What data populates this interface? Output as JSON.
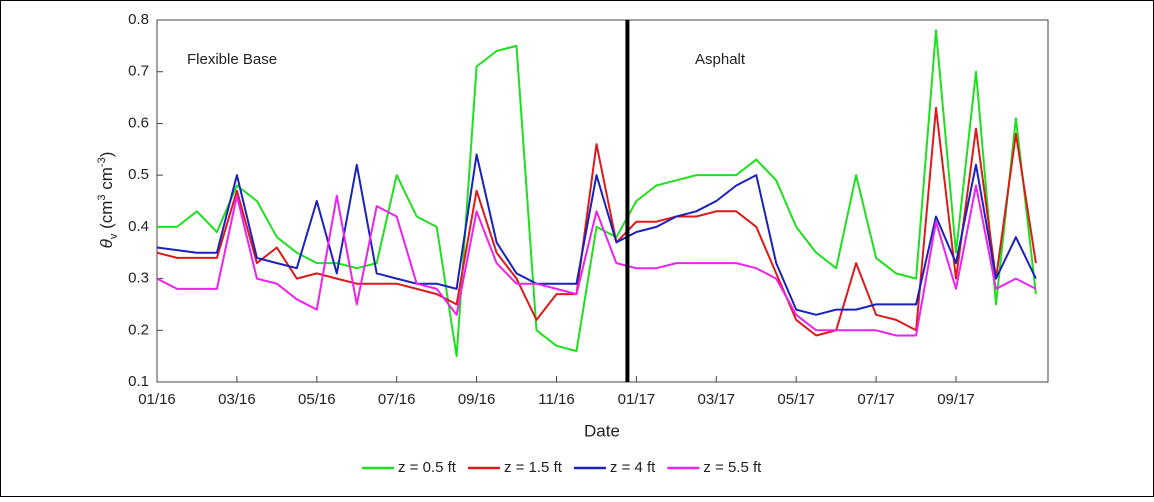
{
  "chart_data": {
    "type": "line",
    "x_label": "Date",
    "y_label": [
      "θ",
      "v",
      " (cm",
      "3",
      " cm",
      "-3",
      ")"
    ],
    "annotations": [
      "Flexible Base",
      "Asphalt"
    ],
    "categories": [
      "01/16",
      null,
      null,
      null,
      "03/16",
      null,
      null,
      null,
      "05/16",
      null,
      null,
      null,
      "07/16",
      null,
      null,
      null,
      "09/16",
      null,
      null,
      null,
      "11/16",
      null,
      null,
      null,
      "01/17",
      null,
      null,
      null,
      "03/17",
      null,
      null,
      null,
      "05/17",
      null,
      null,
      null,
      "07/17",
      null,
      null,
      null,
      "09/17",
      null,
      null,
      null,
      null
    ],
    "series": [
      {
        "name": "z = 0.5 ft",
        "color": "#1ee01e",
        "values": [
          0.4,
          0.4,
          0.43,
          0.39,
          0.48,
          0.45,
          0.38,
          0.35,
          0.33,
          0.33,
          0.32,
          0.33,
          0.5,
          0.42,
          0.4,
          0.15,
          0.71,
          0.74,
          0.75,
          0.2,
          0.17,
          0.16,
          0.4,
          0.38,
          0.45,
          0.48,
          0.49,
          0.5,
          0.5,
          0.5,
          0.53,
          0.49,
          0.4,
          0.35,
          0.32,
          0.5,
          0.34,
          0.31,
          0.3,
          0.78,
          0.35,
          0.7,
          0.25,
          0.61,
          0.27
        ]
      },
      {
        "name": "z = 1.5 ft",
        "color": "#dd1a1a",
        "values": [
          0.35,
          0.34,
          0.34,
          0.34,
          0.47,
          0.33,
          0.36,
          0.3,
          0.31,
          0.3,
          0.29,
          0.29,
          0.29,
          0.28,
          0.27,
          0.25,
          0.47,
          0.35,
          0.3,
          0.22,
          0.27,
          0.27,
          0.56,
          0.37,
          0.41,
          0.41,
          0.42,
          0.42,
          0.43,
          0.43,
          0.4,
          0.31,
          0.22,
          0.19,
          0.2,
          0.33,
          0.23,
          0.22,
          0.2,
          0.63,
          0.3,
          0.59,
          0.3,
          0.58,
          0.33
        ]
      },
      {
        "name": "z = 4 ft",
        "color": "#1a22bb",
        "values": [
          0.36,
          0.355,
          0.35,
          0.35,
          0.5,
          0.34,
          0.33,
          0.32,
          0.45,
          0.31,
          0.52,
          0.31,
          0.3,
          0.29,
          0.29,
          0.28,
          0.54,
          0.37,
          0.31,
          0.29,
          0.29,
          0.29,
          0.5,
          0.37,
          0.39,
          0.4,
          0.42,
          0.43,
          0.45,
          0.48,
          0.5,
          0.33,
          0.24,
          0.23,
          0.24,
          0.24,
          0.25,
          0.25,
          0.25,
          0.42,
          0.33,
          0.52,
          0.3,
          0.38,
          0.3
        ]
      },
      {
        "name": "z = 5.5 ft",
        "color": "#ee22ee",
        "values": [
          0.3,
          0.28,
          0.28,
          0.28,
          0.46,
          0.3,
          0.29,
          0.26,
          0.24,
          0.46,
          0.25,
          0.44,
          0.42,
          0.29,
          0.28,
          0.23,
          0.43,
          0.33,
          0.29,
          0.29,
          0.28,
          0.27,
          0.43,
          0.33,
          0.32,
          0.32,
          0.33,
          0.33,
          0.33,
          0.33,
          0.32,
          0.3,
          0.23,
          0.2,
          0.2,
          0.2,
          0.2,
          0.19,
          0.19,
          0.41,
          0.28,
          0.48,
          0.28,
          0.3,
          0.28
        ]
      }
    ],
    "ylim": [
      0.1,
      0.8
    ],
    "yticks": [
      0.1,
      0.2,
      0.3,
      0.4,
      0.5,
      0.6,
      0.7,
      0.8
    ],
    "grid": false,
    "legend": "bottom"
  }
}
